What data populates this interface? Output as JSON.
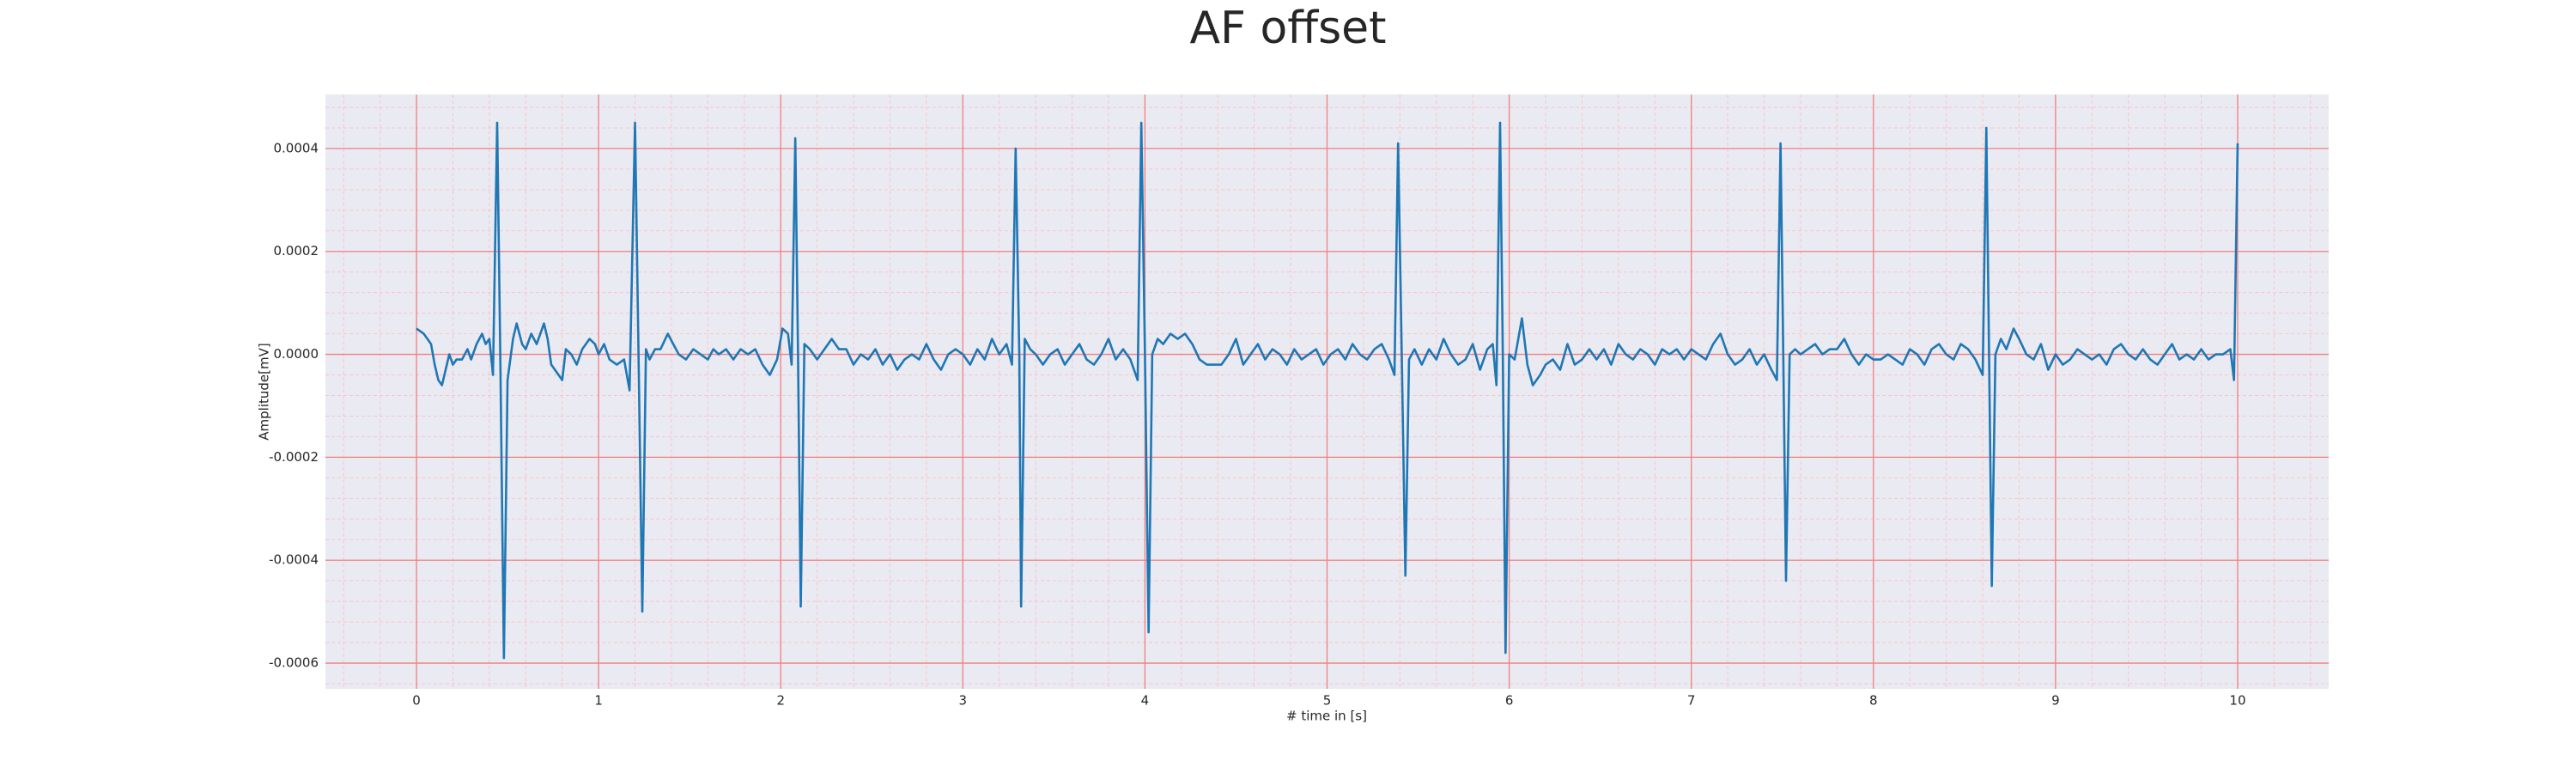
{
  "chart_data": {
    "type": "line",
    "title": "AF offset",
    "xlabel": "# time in [s]",
    "ylabel": "Amplitude[mV]",
    "xlim": [
      -0.5,
      10.5
    ],
    "ylim": [
      -0.00065,
      0.000505
    ],
    "xticks": [
      0,
      1,
      2,
      3,
      4,
      5,
      6,
      7,
      8,
      9,
      10
    ],
    "yticks": [
      0.0004,
      0.0002,
      {
        "value": 0,
        "label": "0.0000"
      },
      -0.0002,
      -0.0004,
      -0.0006
    ],
    "grid": true,
    "grid_color": "#f08080",
    "minor_grid": {
      "x_step": 0.2,
      "y_step": 4e-05,
      "color": "#f7c6c6"
    },
    "background": "#eaeaf2",
    "series": [
      {
        "name": "AF offset",
        "color": "#1f77b4",
        "x": [
          0,
          0.04,
          0.08,
          0.1,
          0.12,
          0.14,
          0.16,
          0.18,
          0.2,
          0.22,
          0.25,
          0.28,
          0.3,
          0.33,
          0.36,
          0.38,
          0.4,
          0.42,
          0.443,
          0.46,
          0.48,
          0.5,
          0.53,
          0.55,
          0.58,
          0.6,
          0.63,
          0.66,
          0.7,
          0.72,
          0.74,
          0.78,
          0.8,
          0.82,
          0.85,
          0.88,
          0.91,
          0.95,
          0.98,
          1.0,
          1.03,
          1.06,
          1.1,
          1.14,
          1.17,
          1.2,
          1.22,
          1.24,
          1.26,
          1.28,
          1.31,
          1.34,
          1.38,
          1.41,
          1.44,
          1.48,
          1.52,
          1.56,
          1.6,
          1.63,
          1.66,
          1.7,
          1.74,
          1.78,
          1.82,
          1.86,
          1.9,
          1.94,
          1.98,
          2.01,
          2.04,
          2.06,
          2.08,
          2.095,
          2.11,
          2.13,
          2.16,
          2.2,
          2.24,
          2.28,
          2.32,
          2.36,
          2.4,
          2.44,
          2.48,
          2.52,
          2.56,
          2.6,
          2.64,
          2.68,
          2.72,
          2.76,
          2.8,
          2.84,
          2.88,
          2.92,
          2.96,
          3.0,
          3.04,
          3.08,
          3.12,
          3.16,
          3.2,
          3.24,
          3.27,
          3.29,
          3.31,
          3.32,
          3.34,
          3.37,
          3.4,
          3.44,
          3.48,
          3.52,
          3.56,
          3.6,
          3.64,
          3.68,
          3.72,
          3.76,
          3.8,
          3.84,
          3.88,
          3.92,
          3.96,
          3.98,
          4.0,
          4.02,
          4.04,
          4.07,
          4.1,
          4.14,
          4.18,
          4.22,
          4.26,
          4.3,
          4.34,
          4.38,
          4.42,
          4.46,
          4.5,
          4.54,
          4.58,
          4.62,
          4.66,
          4.7,
          4.74,
          4.78,
          4.82,
          4.86,
          4.9,
          4.94,
          4.98,
          5.02,
          5.06,
          5.1,
          5.14,
          5.18,
          5.22,
          5.26,
          5.3,
          5.34,
          5.37,
          5.39,
          5.41,
          5.43,
          5.45,
          5.48,
          5.52,
          5.56,
          5.6,
          5.64,
          5.68,
          5.72,
          5.76,
          5.8,
          5.84,
          5.88,
          5.91,
          5.93,
          5.95,
          5.965,
          5.98,
          6.0,
          6.03,
          6.07,
          6.1,
          6.13,
          6.17,
          6.2,
          6.24,
          6.28,
          6.32,
          6.36,
          6.4,
          6.44,
          6.48,
          6.52,
          6.56,
          6.6,
          6.64,
          6.68,
          6.72,
          6.76,
          6.8,
          6.84,
          6.88,
          6.92,
          6.96,
          7.0,
          7.04,
          7.08,
          7.12,
          7.16,
          7.2,
          7.24,
          7.28,
          7.32,
          7.36,
          7.4,
          7.44,
          7.47,
          7.49,
          7.505,
          7.52,
          7.54,
          7.57,
          7.6,
          7.64,
          7.68,
          7.72,
          7.76,
          7.8,
          7.84,
          7.88,
          7.92,
          7.96,
          8.0,
          8.04,
          8.08,
          8.12,
          8.16,
          8.2,
          8.24,
          8.28,
          8.32,
          8.36,
          8.4,
          8.44,
          8.48,
          8.52,
          8.56,
          8.6,
          8.62,
          8.635,
          8.65,
          8.67,
          8.7,
          8.73,
          8.77,
          8.8,
          8.84,
          8.88,
          8.92,
          8.96,
          9.0,
          9.04,
          9.08,
          9.12,
          9.16,
          9.2,
          9.24,
          9.28,
          9.32,
          9.36,
          9.4,
          9.44,
          9.48,
          9.52,
          9.56,
          9.6,
          9.64,
          9.68,
          9.72,
          9.76,
          9.8,
          9.84,
          9.88,
          9.92,
          9.96,
          9.98,
          10.0
        ],
        "values": [
          5e-05,
          4e-05,
          2e-05,
          -2e-05,
          -5e-05,
          -6e-05,
          -3e-05,
          0,
          -2e-05,
          -1e-05,
          -1e-05,
          1e-05,
          -1e-05,
          2e-05,
          4e-05,
          2e-05,
          3e-05,
          -4e-05,
          0.00045,
          0,
          -0.00059,
          -5e-05,
          3e-05,
          6e-05,
          2e-05,
          1e-05,
          4e-05,
          2e-05,
          6e-05,
          3e-05,
          -2e-05,
          -4e-05,
          -5e-05,
          1e-05,
          0,
          -2e-05,
          1e-05,
          3e-05,
          2e-05,
          0,
          2e-05,
          -1e-05,
          -2e-05,
          -1e-05,
          -7e-05,
          0.00045,
          -2e-05,
          -0.0005,
          1e-05,
          -1e-05,
          1e-05,
          1e-05,
          4e-05,
          2e-05,
          0,
          -1e-05,
          1e-05,
          0,
          -1e-05,
          1e-05,
          0,
          1e-05,
          -1e-05,
          1e-05,
          0,
          1e-05,
          -2e-05,
          -4e-05,
          -1e-05,
          5e-05,
          4e-05,
          -2e-05,
          0.00042,
          0,
          -0.00049,
          2e-05,
          1e-05,
          -1e-05,
          1e-05,
          3e-05,
          1e-05,
          1e-05,
          -2e-05,
          0,
          -1e-05,
          1e-05,
          -2e-05,
          0,
          -3e-05,
          -1e-05,
          0,
          -1e-05,
          2e-05,
          -1e-05,
          -3e-05,
          0,
          1e-05,
          0,
          -2e-05,
          1e-05,
          -1e-05,
          3e-05,
          0,
          2e-05,
          -2e-05,
          0.0004,
          0,
          -0.00049,
          3e-05,
          1e-05,
          0,
          -2e-05,
          0,
          1e-05,
          -2e-05,
          0,
          2e-05,
          -1e-05,
          -2e-05,
          0,
          3e-05,
          -1e-05,
          1e-05,
          -1e-05,
          -5e-05,
          0.00045,
          0,
          -0.00054,
          0,
          3e-05,
          2e-05,
          4e-05,
          3e-05,
          4e-05,
          2e-05,
          -1e-05,
          -2e-05,
          -2e-05,
          -2e-05,
          0,
          3e-05,
          -2e-05,
          0,
          2e-05,
          -1e-05,
          1e-05,
          0,
          -2e-05,
          1e-05,
          -1e-05,
          0,
          1e-05,
          -2e-05,
          0,
          1e-05,
          -1e-05,
          2e-05,
          0,
          -1e-05,
          1e-05,
          2e-05,
          -1e-05,
          -4e-05,
          0.00041,
          0,
          -0.00043,
          -1e-05,
          1e-05,
          -2e-05,
          1e-05,
          -1e-05,
          3e-05,
          0,
          -2e-05,
          -1e-05,
          2e-05,
          -3e-05,
          1e-05,
          2e-05,
          -6e-05,
          0.00045,
          0,
          -0.00058,
          0,
          -1e-05,
          7e-05,
          -2e-05,
          -6e-05,
          -4e-05,
          -2e-05,
          -1e-05,
          -3e-05,
          2e-05,
          -2e-05,
          -1e-05,
          1e-05,
          -1e-05,
          1e-05,
          -2e-05,
          2e-05,
          0,
          -1e-05,
          1e-05,
          0,
          -2e-05,
          1e-05,
          0,
          1e-05,
          -1e-05,
          1e-05,
          0,
          -1e-05,
          2e-05,
          4e-05,
          0,
          -2e-05,
          -1e-05,
          1e-05,
          -2e-05,
          0,
          -3e-05,
          -5e-05,
          0.00041,
          0,
          -0.00044,
          0,
          1e-05,
          0,
          1e-05,
          2e-05,
          0,
          1e-05,
          1e-05,
          3e-05,
          0,
          -2e-05,
          0,
          -1e-05,
          -1e-05,
          0,
          -1e-05,
          -2e-05,
          1e-05,
          0,
          -2e-05,
          1e-05,
          2e-05,
          0,
          -1e-05,
          2e-05,
          1e-05,
          -1e-05,
          -4e-05,
          0.00044,
          0,
          -0.00045,
          0,
          3e-05,
          1e-05,
          5e-05,
          3e-05,
          0,
          -1e-05,
          2e-05,
          -3e-05,
          0,
          -2e-05,
          -1e-05,
          1e-05,
          0,
          -1e-05,
          0,
          -2e-05,
          1e-05,
          2e-05,
          0,
          -1e-05,
          1e-05,
          -1e-05,
          -2e-05,
          0,
          2e-05,
          -1e-05,
          0,
          -1e-05,
          1e-05,
          -1e-05,
          0,
          0,
          1e-05,
          -5e-05,
          0.00041
        ]
      }
    ]
  }
}
